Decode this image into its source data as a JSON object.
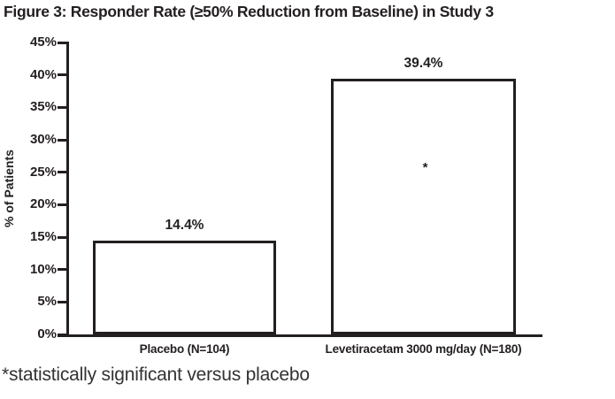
{
  "figure": {
    "title": "Figure 3: Responder Rate (≥50% Reduction from Baseline) in Study 3",
    "footnote": "*statistically significant versus placebo"
  },
  "chart_data": {
    "type": "bar",
    "title": "Figure 3: Responder Rate (≥50% Reduction from Baseline) in Study 3",
    "xlabel": "",
    "ylabel": "% of Patients",
    "ylim": [
      0,
      45
    ],
    "ytick_step": 5,
    "ytick_suffix": "%",
    "grid": false,
    "legend": false,
    "categories": [
      "Placebo (N=104)",
      "Levetiracetam 3000 mg/day (N=180)"
    ],
    "values": [
      14.4,
      39.4
    ],
    "value_labels": [
      "14.4%",
      "39.4%"
    ],
    "bar_fill": "#ffffff",
    "bar_border": "#231f20",
    "annotations": [
      {
        "bar_index": 1,
        "text": "*",
        "y_value": 26
      }
    ]
  },
  "colors": {
    "text": "#231f20",
    "footnote": "#333333",
    "background": "#ffffff"
  }
}
